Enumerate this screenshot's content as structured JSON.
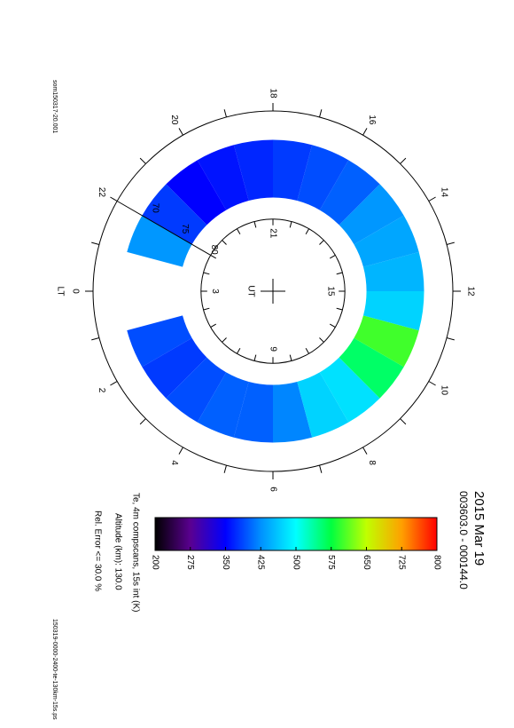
{
  "chart_data": {
    "type": "polar-ring",
    "title": "2015 Mar 19",
    "subtitle": "003603.0 - 000144.0",
    "colorbar_label": "Te, 4m compscans, 15s int (K)",
    "altitude_note": "Altitude (km): 130.0",
    "error_note": "Rel. Error <= 30.0 %",
    "file_left": "som150317-20.001",
    "file_right": "150319-0000-2400-te-130km-15s.ps",
    "lt_label": "LT",
    "ut_label": "UT",
    "lt_ticks": [
      0,
      2,
      4,
      6,
      8,
      10,
      12,
      14,
      16,
      18,
      20,
      22
    ],
    "ut_ticks": [
      3,
      9,
      15,
      21
    ],
    "lat_ticks": [
      70,
      75,
      80
    ],
    "latlim": [
      90,
      65
    ],
    "lat_band": [
      77,
      69
    ],
    "categories": [
      0,
      1,
      2,
      3,
      4,
      5,
      6,
      7,
      8,
      9,
      10,
      11,
      12,
      13,
      14,
      15,
      16,
      17,
      18,
      19,
      20,
      21,
      22,
      23
    ],
    "values": [
      null,
      390,
      380,
      390,
      400,
      400,
      420,
      470,
      480,
      560,
      600,
      470,
      450,
      440,
      430,
      400,
      390,
      380,
      370,
      360,
      350,
      380,
      430,
      null
    ],
    "clim": [
      200,
      800
    ],
    "cticks": [
      200,
      275,
      350,
      425,
      500,
      575,
      650,
      725,
      800
    ],
    "colormap": [
      "#000000",
      "#5a0090",
      "#0000ff",
      "#0090ff",
      "#00ffff",
      "#00ff40",
      "#c0ff00",
      "#ffa000",
      "#ff0000"
    ]
  }
}
